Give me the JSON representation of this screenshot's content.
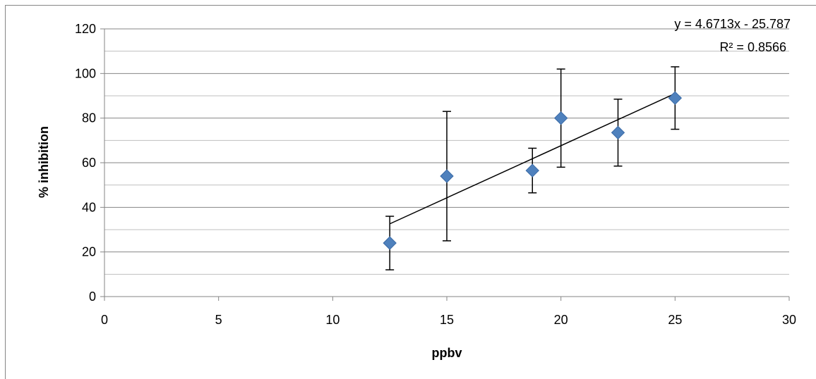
{
  "chart_data": {
    "type": "scatter",
    "xlabel": "ppbv",
    "ylabel": "% inhibition",
    "xlim": [
      0,
      30
    ],
    "ylim": [
      0,
      120
    ],
    "x_ticks": [
      0,
      5,
      10,
      15,
      20,
      25,
      30
    ],
    "y_ticks": [
      0,
      20,
      40,
      60,
      80,
      100,
      120
    ],
    "grid": "horizontal major and minor lines",
    "legend": "none",
    "series": [
      {
        "marker": "diamond",
        "color": "#4F81BD",
        "points": [
          {
            "x": 12.5,
            "y": 24,
            "err_low": 12,
            "err_high": 36
          },
          {
            "x": 15,
            "y": 54,
            "err_low": 25,
            "err_high": 83
          },
          {
            "x": 18.75,
            "y": 56.5,
            "err_low": 46.5,
            "err_high": 66.5
          },
          {
            "x": 20,
            "y": 80,
            "err_low": 58,
            "err_high": 102
          },
          {
            "x": 22.5,
            "y": 73.5,
            "err_low": 58.5,
            "err_high": 88.5
          },
          {
            "x": 25,
            "y": 89,
            "err_low": 75,
            "err_high": 103
          }
        ]
      }
    ],
    "trendline": {
      "slope": 4.6713,
      "intercept": -25.787,
      "x_range": [
        12.5,
        25
      ],
      "equation_label": "y = 4.6713x - 25.787",
      "r2_label": "R² = 0.8566"
    }
  }
}
